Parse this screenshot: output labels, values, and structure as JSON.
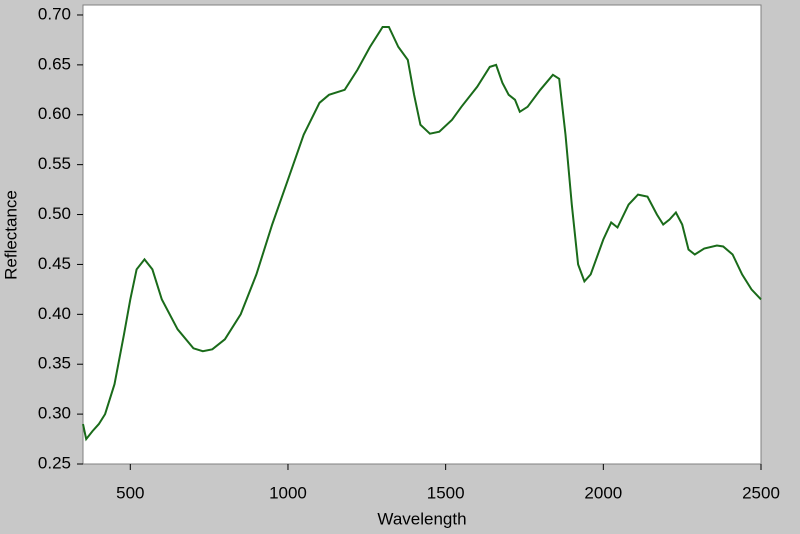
{
  "chart_data": {
    "type": "line",
    "x_label": "Wavelength",
    "y_label": "Reflectance",
    "color": "#1a6b1a",
    "x": [
      350,
      360,
      380,
      400,
      420,
      450,
      480,
      500,
      520,
      545,
      570,
      600,
      650,
      700,
      730,
      760,
      800,
      850,
      900,
      950,
      1000,
      1050,
      1100,
      1130,
      1180,
      1220,
      1260,
      1300,
      1320,
      1350,
      1380,
      1400,
      1420,
      1450,
      1480,
      1520,
      1550,
      1600,
      1640,
      1660,
      1680,
      1700,
      1720,
      1735,
      1760,
      1800,
      1840,
      1860,
      1880,
      1900,
      1920,
      1940,
      1960,
      2000,
      2025,
      2045,
      2080,
      2110,
      2140,
      2170,
      2190,
      2210,
      2230,
      2250,
      2270,
      2290,
      2320,
      2360,
      2380,
      2410,
      2440,
      2470,
      2500
    ],
    "values": [
      0.29,
      0.275,
      0.283,
      0.29,
      0.3,
      0.33,
      0.38,
      0.415,
      0.445,
      0.455,
      0.445,
      0.415,
      0.385,
      0.366,
      0.363,
      0.365,
      0.375,
      0.4,
      0.44,
      0.49,
      0.535,
      0.58,
      0.612,
      0.62,
      0.625,
      0.645,
      0.668,
      0.688,
      0.688,
      0.668,
      0.655,
      0.62,
      0.59,
      0.581,
      0.583,
      0.595,
      0.608,
      0.628,
      0.648,
      0.65,
      0.632,
      0.62,
      0.615,
      0.603,
      0.608,
      0.625,
      0.64,
      0.636,
      0.58,
      0.51,
      0.45,
      0.433,
      0.44,
      0.475,
      0.492,
      0.487,
      0.51,
      0.52,
      0.518,
      0.5,
      0.49,
      0.495,
      0.502,
      0.49,
      0.465,
      0.46,
      0.466,
      0.469,
      0.468,
      0.46,
      0.44,
      0.425,
      0.415
    ],
    "xlim": [
      350,
      2500
    ],
    "xticks": [
      500,
      1000,
      1500,
      2000,
      2500
    ],
    "ylim": [
      0.25,
      0.71
    ],
    "yticks": [
      0.25,
      {
        "value": 0.3,
        "label": "0.30"
      },
      0.35,
      {
        "value": 0.4,
        "label": "0.40"
      },
      0.45,
      {
        "value": 0.5,
        "label": "0.50"
      },
      0.55,
      {
        "value": 0.6,
        "label": "0.60"
      },
      0.65,
      {
        "value": 0.7,
        "label": "0.70"
      }
    ]
  }
}
